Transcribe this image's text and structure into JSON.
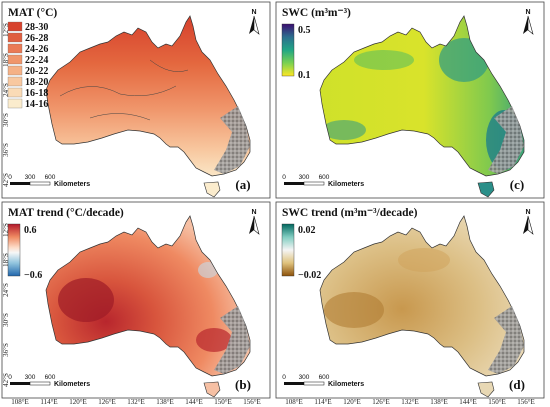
{
  "panels": [
    {
      "id": "a",
      "label": "(a)",
      "title": "MAT (°C)",
      "legend_type": "classes",
      "classes": [
        {
          "label": "28-30",
          "color": "#d7432e"
        },
        {
          "label": "26-28",
          "color": "#e05f40"
        },
        {
          "label": "24-26",
          "color": "#ea7a55"
        },
        {
          "label": "22-24",
          "color": "#f0966b"
        },
        {
          "label": "20-22",
          "color": "#f5b186"
        },
        {
          "label": "18-20",
          "color": "#f8c8a0"
        },
        {
          "label": "16-18",
          "color": "#fadbb6"
        },
        {
          "label": "14-16",
          "color": "#fbeccd"
        }
      ]
    },
    {
      "id": "c",
      "label": "(c)",
      "title": "SWC (m³m⁻³)",
      "legend_type": "gradient",
      "max_label": "0.5",
      "min_label": "0.1",
      "gradient_colors": [
        "#3b0f70",
        "#2c6e8e",
        "#21a685",
        "#7ad151",
        "#fde725"
      ]
    },
    {
      "id": "b",
      "label": "(b)",
      "title": "MAT trend (°C/decade)",
      "legend_type": "gradient",
      "max_label": "0.6",
      "min_label": "−0.6",
      "gradient_colors": [
        "#b2182b",
        "#ef8a62",
        "#fddbc7",
        "#f7f7f7",
        "#92c5de",
        "#2166ac"
      ]
    },
    {
      "id": "d",
      "label": "(d)",
      "title": "SWC trend (m³m⁻³/decade)",
      "legend_type": "gradient",
      "max_label": "0.02",
      "min_label": "−0.02",
      "gradient_colors": [
        "#01665e",
        "#80cdc1",
        "#f5f5f5",
        "#dfc27d",
        "#8c510a"
      ]
    }
  ],
  "axes": {
    "lat_labels": [
      "12°S",
      "18°S",
      "24°S",
      "30°S",
      "36°S",
      "42°S"
    ],
    "lon_labels": [
      "108°E",
      "114°E",
      "120°E",
      "126°E",
      "132°E",
      "138°E",
      "144°E",
      "150°E",
      "156°E"
    ]
  },
  "scalebar": {
    "ticks": [
      "0",
      "300",
      "600"
    ],
    "unit": "Kilometers"
  },
  "north_arrow": "N"
}
